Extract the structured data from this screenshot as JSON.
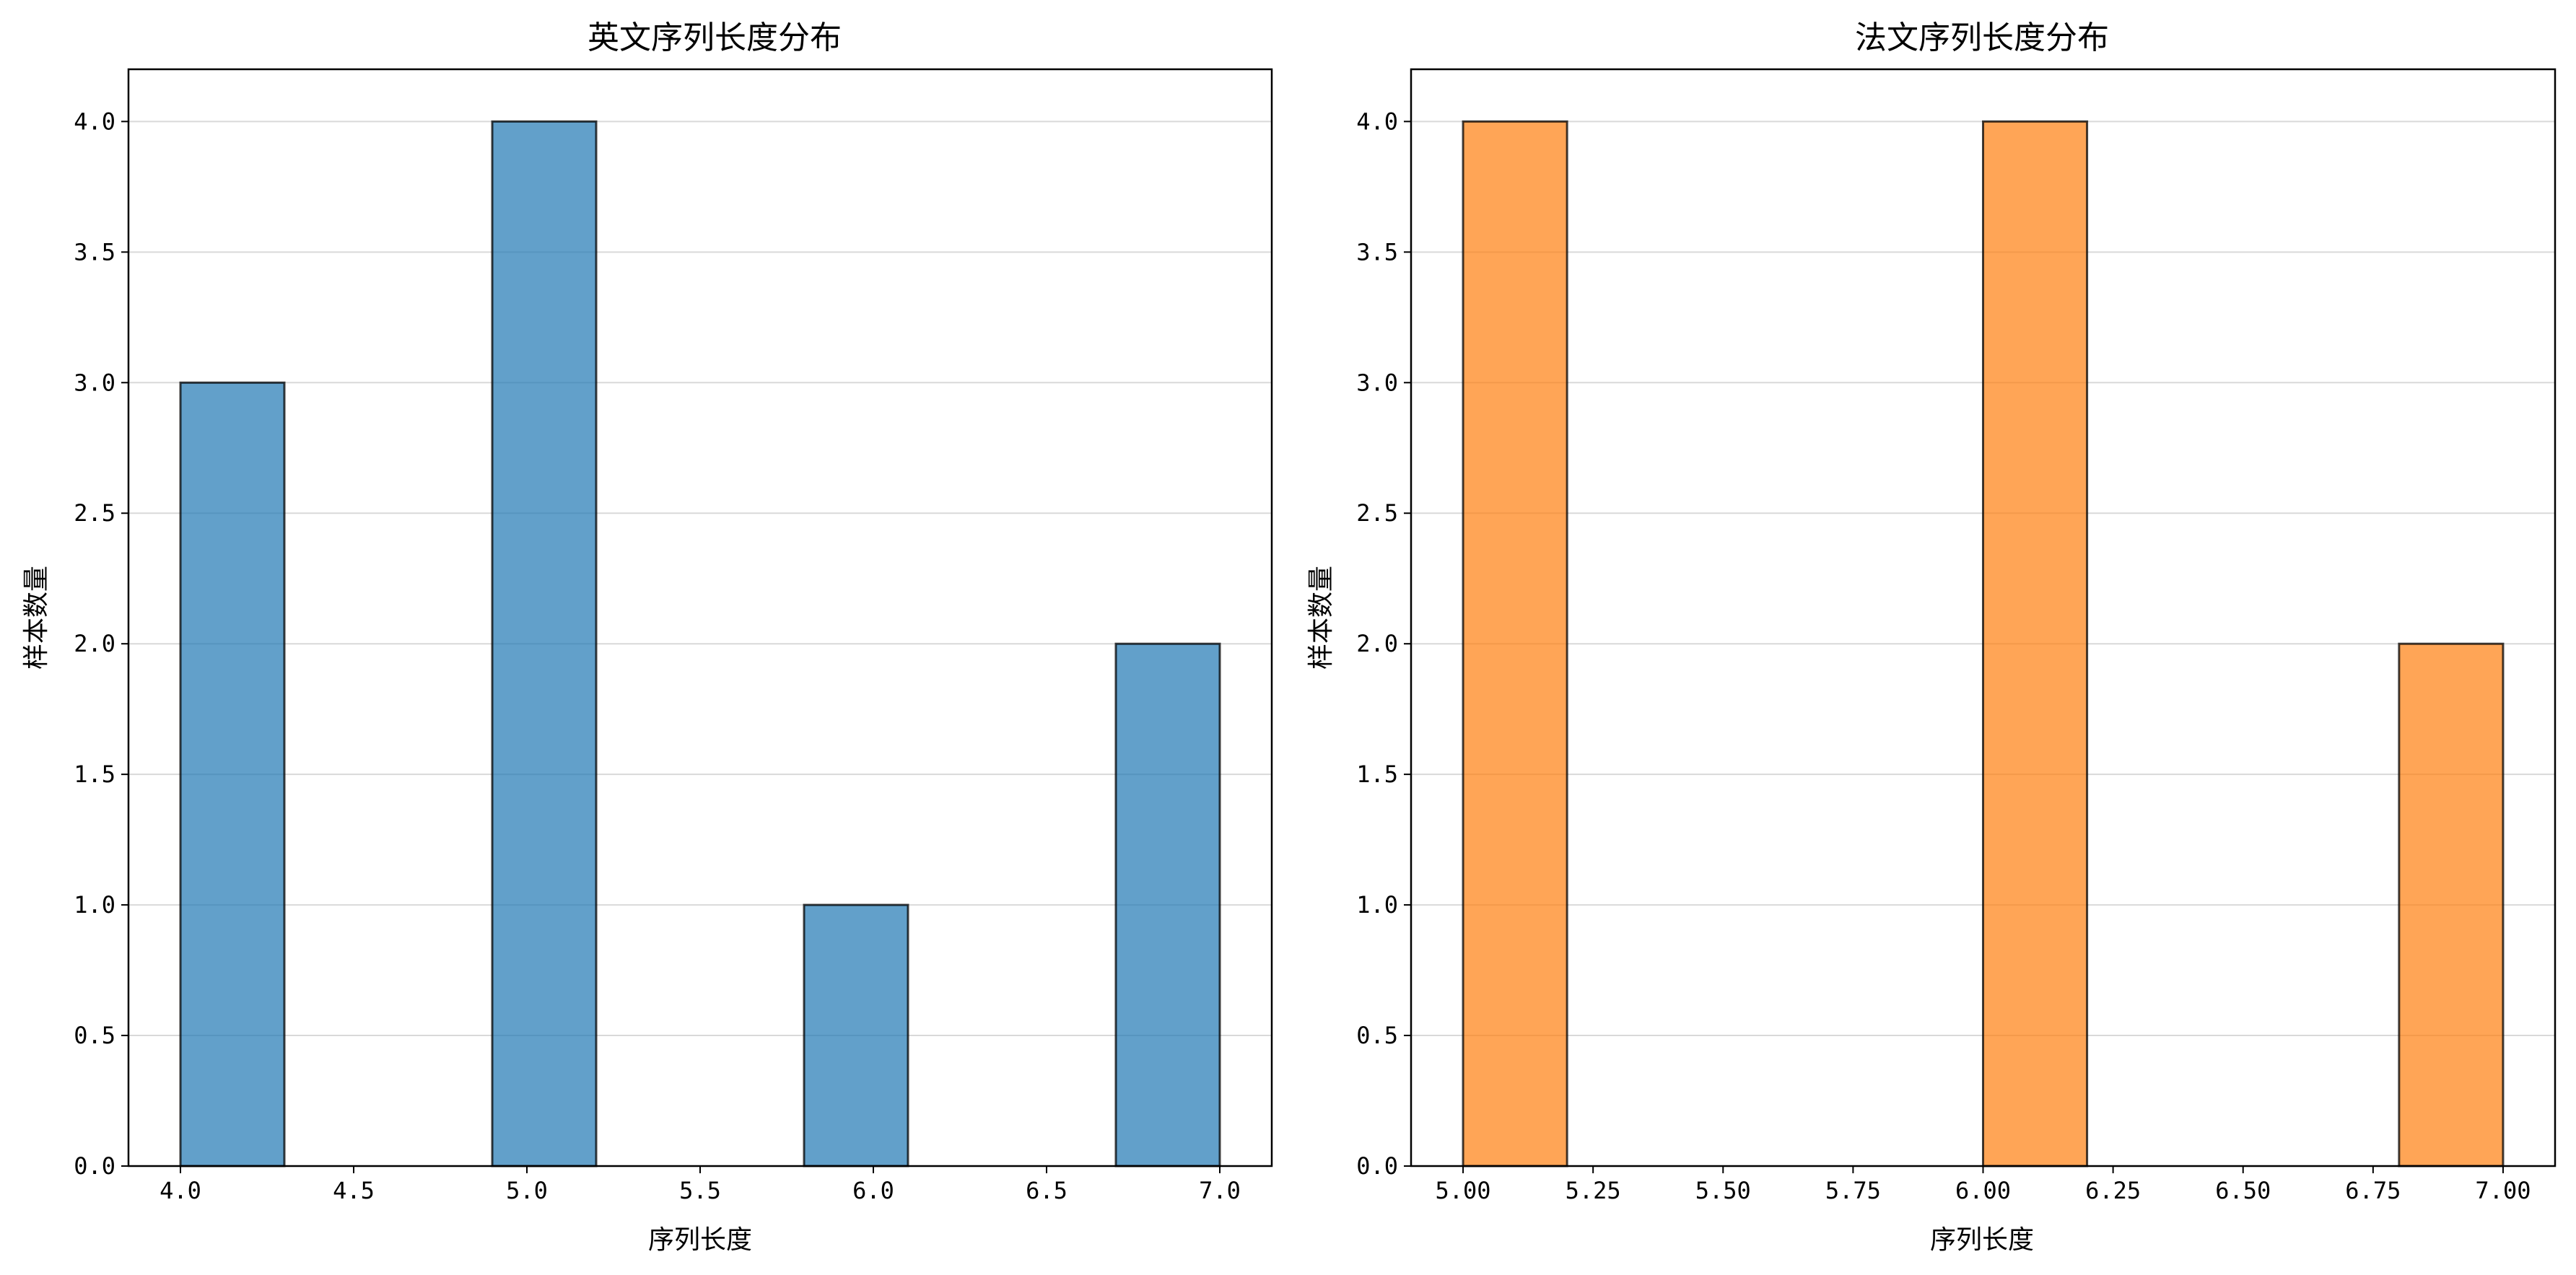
{
  "chart_data": [
    {
      "type": "bar",
      "subtype": "histogram",
      "title": "英文序列长度分布",
      "xlabel": "序列长度",
      "ylabel": "样本数量",
      "color": "#1f77b4",
      "bar_alpha": 0.7,
      "edge_color": "#000000",
      "bars": [
        {
          "x0": 4.0,
          "x1": 4.3,
          "count": 3
        },
        {
          "x0": 4.9,
          "x1": 5.2,
          "count": 4
        },
        {
          "x0": 5.8,
          "x1": 6.1,
          "count": 1
        },
        {
          "x0": 6.7,
          "x1": 7.0,
          "count": 2
        }
      ],
      "xlim": [
        3.85,
        7.15
      ],
      "ylim": [
        0,
        4.2
      ],
      "xticks": [
        4.0,
        4.5,
        5.0,
        5.5,
        6.0,
        6.5,
        7.0
      ],
      "xtick_labels": [
        "4.0",
        "4.5",
        "5.0",
        "5.5",
        "6.0",
        "6.5",
        "7.0"
      ],
      "yticks": [
        0,
        0.5,
        1,
        1.5,
        2,
        2.5,
        3,
        3.5,
        4
      ],
      "ytick_labels": [
        "0.0",
        "0.5",
        "1.0",
        "1.5",
        "2.0",
        "2.5",
        "3.0",
        "3.5",
        "4.0"
      ],
      "grid": "y"
    },
    {
      "type": "bar",
      "subtype": "histogram",
      "title": "法文序列长度分布",
      "xlabel": "序列长度",
      "ylabel": "样本数量",
      "color": "#ff7f0e",
      "bar_alpha": 0.7,
      "edge_color": "#000000",
      "bars": [
        {
          "x0": 5.0,
          "x1": 5.2,
          "count": 4
        },
        {
          "x0": 6.0,
          "x1": 6.2,
          "count": 4
        },
        {
          "x0": 6.8,
          "x1": 7.0,
          "count": 2
        }
      ],
      "xlim": [
        4.9,
        7.1
      ],
      "ylim": [
        0,
        4.2
      ],
      "xticks": [
        5.0,
        5.25,
        5.5,
        5.75,
        6.0,
        6.25,
        6.5,
        6.75,
        7.0
      ],
      "xtick_labels": [
        "5.00",
        "5.25",
        "5.50",
        "5.75",
        "6.00",
        "6.25",
        "6.50",
        "6.75",
        "7.00"
      ],
      "yticks": [
        0,
        0.5,
        1,
        1.5,
        2,
        2.5,
        3,
        3.5,
        4
      ],
      "ytick_labels": [
        "0.0",
        "0.5",
        "1.0",
        "1.5",
        "2.0",
        "2.5",
        "3.0",
        "3.5",
        "4.0"
      ],
      "grid": "y"
    }
  ]
}
